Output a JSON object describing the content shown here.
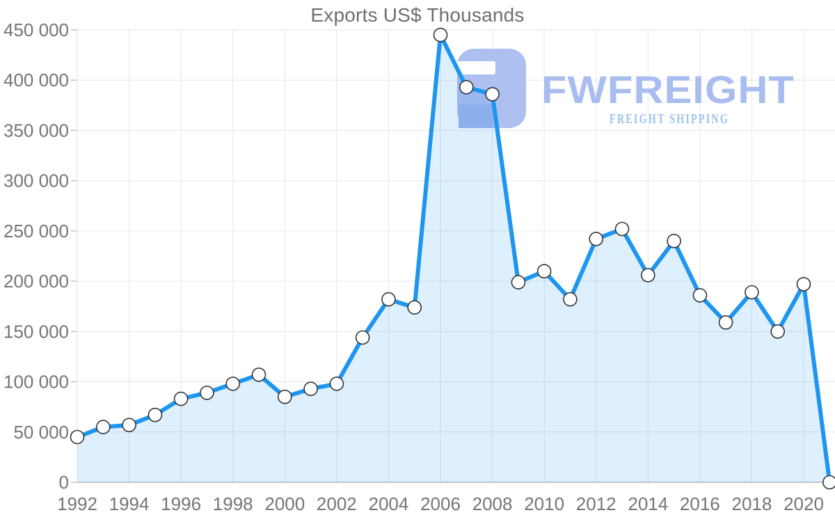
{
  "chart_data": {
    "type": "area",
    "title": "Exports US$ Thousands",
    "xlabel": "",
    "ylabel": "",
    "grid": true,
    "legend": "none",
    "series_name": "Exports US$ Thousands",
    "x": [
      1992,
      1993,
      1994,
      1995,
      1996,
      1997,
      1998,
      1999,
      2000,
      2001,
      2002,
      2003,
      2004,
      2005,
      2006,
      2007,
      2008,
      2009,
      2010,
      2011,
      2012,
      2013,
      2014,
      2015,
      2016,
      2017,
      2018,
      2019,
      2020,
      2021
    ],
    "values": [
      45000,
      55000,
      57000,
      67000,
      83000,
      89000,
      98000,
      107000,
      85000,
      93000,
      98000,
      144000,
      182000,
      174000,
      445000,
      393000,
      386000,
      199000,
      210000,
      182000,
      242000,
      252000,
      206000,
      240000,
      186000,
      159000,
      189000,
      150000,
      197000,
      0
    ],
    "ylim": [
      0,
      450000
    ],
    "xlim": [
      1992,
      2021
    ],
    "y_ticks": [
      0,
      50000,
      100000,
      150000,
      200000,
      250000,
      300000,
      350000,
      400000,
      450000
    ],
    "y_tick_labels": [
      "0",
      "50 000",
      "100 000",
      "150 000",
      "200 000",
      "250 000",
      "300 000",
      "350 000",
      "400 000",
      "450 000"
    ],
    "x_tick_labels": [
      "1992",
      "1994",
      "1996",
      "1998",
      "2000",
      "2002",
      "2004",
      "2006",
      "2008",
      "2010",
      "2012",
      "2014",
      "2016",
      "2018",
      "2020"
    ]
  },
  "watermark": {
    "brand": "FWFREIGHT",
    "tagline": "FREIGHT SHIPPING"
  },
  "colors": {
    "line": "#1e96f0",
    "area_fill": "rgba(33,150,243,0.15)",
    "marker_fill": "#ffffff",
    "marker_stroke": "#333333",
    "grid": "#e6e6e6",
    "axis": "#b5b5b5",
    "tick": "#bdbdbd",
    "label": "#757575",
    "title": "#6e6e6e",
    "watermark_primary": "#a9bdf0",
    "watermark_icon": "#aec0ef",
    "watermark_icon_dark": "#9fb4ea",
    "watermark_tagline": "#9cc2f0"
  }
}
